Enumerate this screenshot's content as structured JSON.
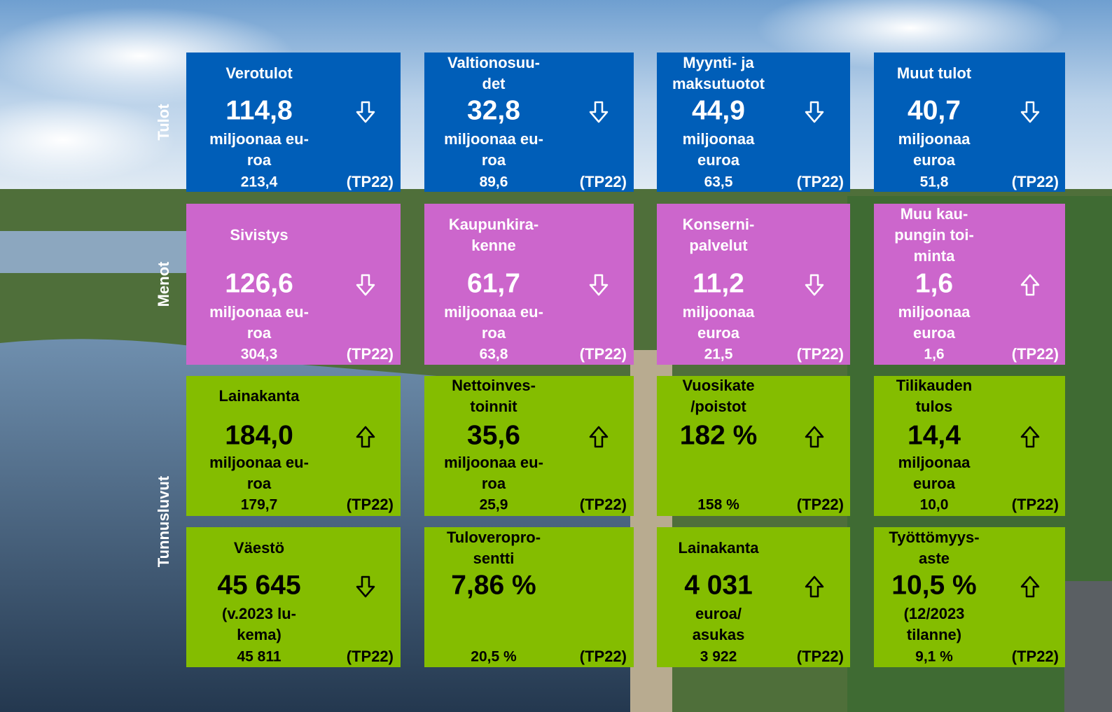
{
  "sections": [
    {
      "label": "Tulot",
      "rows": [
        [
          {
            "title": [
              "Verotulot"
            ],
            "value": "114,8",
            "arrow": "down",
            "unit": [
              "miljoonaa eu-",
              "roa"
            ],
            "previous": "213,4",
            "reference": "(TP22)"
          },
          {
            "title": [
              "Valtionosuu-",
              "det"
            ],
            "value": "32,8",
            "arrow": "down",
            "unit": [
              "miljoonaa eu-",
              "roa"
            ],
            "previous": "89,6",
            "reference": "(TP22)"
          },
          {
            "title": [
              "Myynti- ja",
              "maksutuotot"
            ],
            "value": "44,9",
            "arrow": "down",
            "unit": [
              "miljoonaa",
              "euroa"
            ],
            "previous": "63,5",
            "reference": "(TP22)"
          },
          {
            "title": [
              "Muut tulot"
            ],
            "value": "40,7",
            "arrow": "down",
            "unit": [
              "miljoonaa",
              "euroa"
            ],
            "previous": "51,8",
            "reference": "(TP22)"
          }
        ]
      ]
    },
    {
      "label": "Menot",
      "rows": [
        [
          {
            "title": [
              "Sivistys"
            ],
            "value": "126,6",
            "arrow": "down",
            "unit": [
              "miljoonaa eu-",
              "roa"
            ],
            "previous": "304,3",
            "reference": "(TP22)"
          },
          {
            "title": [
              "Kaupunkira-",
              "kenne"
            ],
            "value": "61,7",
            "arrow": "down",
            "unit": [
              "miljoonaa eu-",
              "roa"
            ],
            "previous": "63,8",
            "reference": "(TP22)"
          },
          {
            "title": [
              "Konserni-",
              "palvelut"
            ],
            "value": "11,2",
            "arrow": "down",
            "unit": [
              "miljoonaa",
              "euroa"
            ],
            "previous": "21,5",
            "reference": "(TP22)"
          },
          {
            "title": [
              "Muu kau-",
              "pungin toi-",
              "minta"
            ],
            "value": "1,6",
            "arrow": "up",
            "unit": [
              "miljoonaa",
              "euroa"
            ],
            "previous": "1,6",
            "reference": "(TP22)"
          }
        ]
      ]
    },
    {
      "label": "Tunnusluvut",
      "rows": [
        [
          {
            "title": [
              "Lainakanta"
            ],
            "value": "184,0",
            "arrow": "up",
            "unit": [
              "miljoonaa eu-",
              "roa"
            ],
            "previous": "179,7",
            "reference": "(TP22)"
          },
          {
            "title": [
              "Nettoinves-",
              "toinnit"
            ],
            "value": "35,6",
            "arrow": "up",
            "unit": [
              "miljoonaa eu-",
              "roa"
            ],
            "previous": "25,9",
            "reference": "(TP22)"
          },
          {
            "title": [
              "Vuosikate",
              "/poistot"
            ],
            "value": "182 %",
            "arrow": "up",
            "unit": [],
            "previous": "158 %",
            "reference": "(TP22)"
          },
          {
            "title": [
              "Tilikauden",
              "tulos"
            ],
            "value": "14,4",
            "arrow": "up",
            "unit": [
              "miljoonaa",
              "euroa"
            ],
            "previous": "10,0",
            "reference": "(TP22)"
          }
        ],
        [
          {
            "title": [
              "Väestö"
            ],
            "value": "45 645",
            "arrow": "down",
            "unit": [
              "(v.2023 lu-",
              "kema)"
            ],
            "previous": "45 811",
            "reference": "(TP22)"
          },
          {
            "title": [
              "Tuloveropro-",
              "sentti"
            ],
            "value": "7,86 %",
            "arrow": null,
            "unit": [],
            "previous": "20,5 %",
            "reference": "(TP22)"
          },
          {
            "title": [
              "Lainakanta"
            ],
            "value": "4 031",
            "arrow": "up",
            "unit": [
              "euroa/",
              "asukas"
            ],
            "previous": "3 922",
            "reference": "(TP22)"
          },
          {
            "title": [
              "Työttömyys-",
              "aste"
            ],
            "value": "10,5 %",
            "arrow": "up",
            "unit": [
              "(12/2023",
              "tilanne)"
            ],
            "previous": "9,1 %",
            "reference": "(TP22)"
          }
        ]
      ]
    }
  ]
}
